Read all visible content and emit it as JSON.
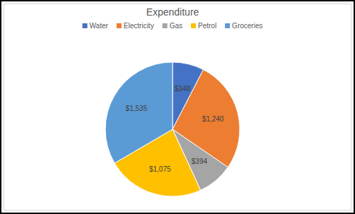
{
  "chart_data": {
    "type": "pie",
    "title": "Expenditure",
    "categories": [
      "Water",
      "Electricity",
      "Gas",
      "Petrol",
      "Groceries"
    ],
    "values": [
      348,
      1240,
      394,
      1075,
      1535
    ],
    "value_labels": [
      "$348",
      "$1,240",
      "$394",
      "$1,075",
      "$1,535"
    ],
    "colors": [
      "#4472c4",
      "#ed7d31",
      "#a5a5a5",
      "#ffc000",
      "#5b9bd5"
    ],
    "data_labels": true,
    "legend": "top"
  }
}
